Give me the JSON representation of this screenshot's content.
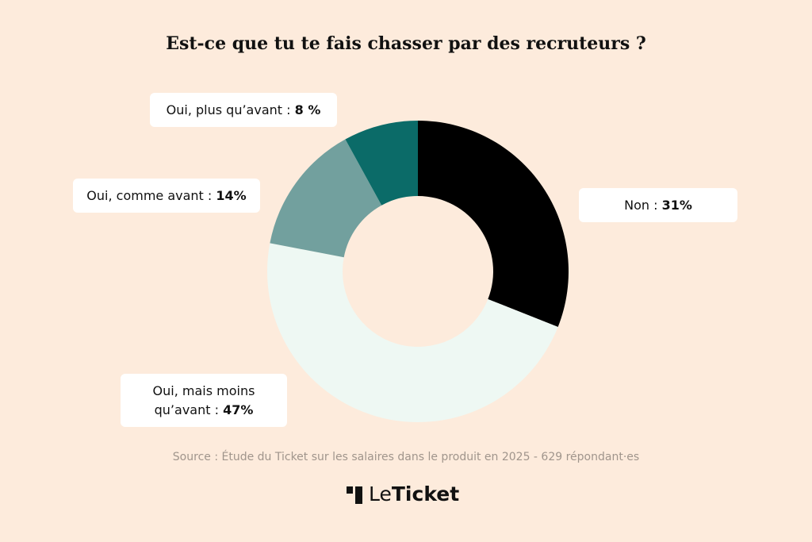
{
  "chart_data": {
    "type": "donut",
    "title": "Est-ce que tu te fais chasser par des recruteurs ?",
    "categories": [
      "Non :",
      "Oui, mais moins qu’avant :",
      "Oui, comme avant :",
      "Oui, plus qu’avant :"
    ],
    "values": [
      31,
      47,
      14,
      8
    ],
    "value_labels": [
      "31%",
      "47%",
      "14%",
      "8 %"
    ],
    "colors": [
      "#000000",
      "#eef8f3",
      "#72a09e",
      "#0b6b68"
    ],
    "source": "Source : Étude du Ticket sur les salaires dans le produit en 2025 - 629 répondant·es"
  },
  "logo": {
    "prefix": "Le",
    "name": "Ticket"
  }
}
